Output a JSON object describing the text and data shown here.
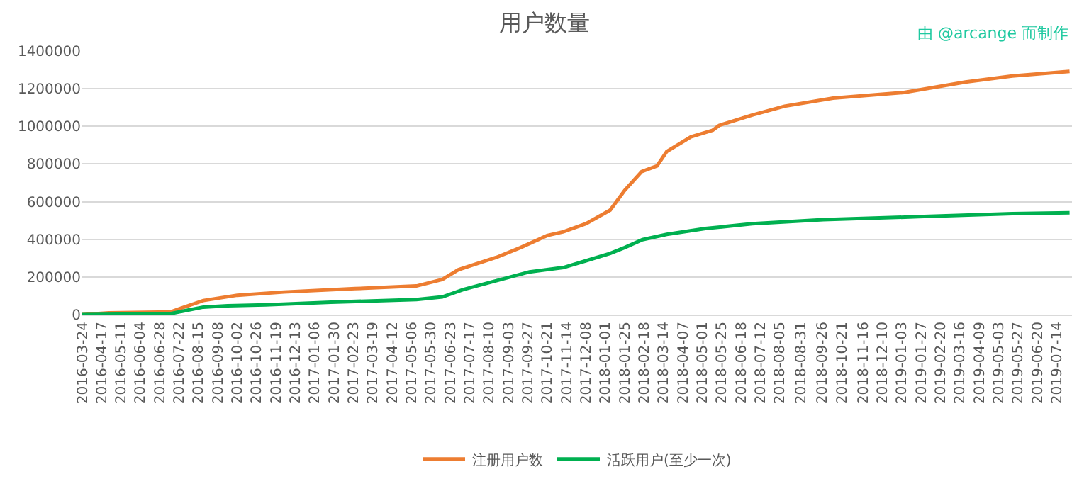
{
  "chart_data": {
    "type": "line",
    "title": "用户数量",
    "annotations": [
      "由 @arcange 而制作"
    ],
    "xlim": [
      "2016-03-24",
      "2019-08-02"
    ],
    "xticks": [
      "2016-03-24",
      "2016-04-17",
      "2016-05-11",
      "2016-06-04",
      "2016-06-28",
      "2016-07-22",
      "2016-08-15",
      "2016-09-08",
      "2016-10-02",
      "2016-10-26",
      "2016-11-19",
      "2016-12-13",
      "2017-01-06",
      "2017-01-30",
      "2017-02-23",
      "2017-03-19",
      "2017-04-12",
      "2017-05-06",
      "2017-05-30",
      "2017-06-23",
      "2017-07-17",
      "2017-08-10",
      "2017-09-03",
      "2017-09-27",
      "2017-10-21",
      "2017-11-14",
      "2017-12-08",
      "2018-01-01",
      "2018-01-25",
      "2018-02-18",
      "2018-03-14",
      "2018-04-07",
      "2018-05-01",
      "2018-05-25",
      "2018-06-18",
      "2018-07-12",
      "2018-08-05",
      "2018-08-31",
      "2018-09-26",
      "2018-10-21",
      "2018-11-16",
      "2018-12-10",
      "2019-01-03",
      "2019-01-27",
      "2019-02-20",
      "2019-03-16",
      "2019-04-09",
      "2019-05-03",
      "2019-05-27",
      "2019-06-20",
      "2019-07-14"
    ],
    "ylim": [
      0,
      1400000
    ],
    "yticks": [
      0,
      200000,
      400000,
      600000,
      800000,
      1000000,
      1200000,
      1400000
    ],
    "grid": "y",
    "legend": "bottom",
    "marker": "none",
    "line_style": "solid",
    "series": [
      {
        "name": "注册用户数",
        "color": "#ed7d31",
        "x": [
          "2016-03-24",
          "2016-04-26",
          "2016-07-11",
          "2016-08-21",
          "2016-10-02",
          "2016-11-29",
          "2017-02-25",
          "2017-05-12",
          "2017-06-13",
          "2017-07-03",
          "2017-08-19",
          "2017-09-18",
          "2017-10-21",
          "2017-11-10",
          "2017-12-08",
          "2018-01-07",
          "2018-01-25",
          "2018-02-15",
          "2018-03-06",
          "2018-03-18",
          "2018-04-17",
          "2018-05-14",
          "2018-05-22",
          "2018-07-02",
          "2018-08-11",
          "2018-10-10",
          "2019-01-06",
          "2019-03-23",
          "2019-05-20",
          "2019-07-30"
        ],
        "values": [
          0,
          9000,
          14000,
          75000,
          103000,
          120000,
          138000,
          152000,
          187000,
          239000,
          304000,
          356000,
          420000,
          440000,
          483000,
          555000,
          660000,
          760000,
          790000,
          866000,
          944000,
          979000,
          1005000,
          1060000,
          1107000,
          1150000,
          1180000,
          1235000,
          1267000,
          1292000
        ]
      },
      {
        "name": "活跃用户(至少一次)",
        "color": "#00b050",
        "x": [
          "2016-03-24",
          "2016-07-11",
          "2016-08-21",
          "2016-09-20",
          "2016-11-06",
          "2017-01-26",
          "2017-05-12",
          "2017-06-13",
          "2017-07-09",
          "2017-08-19",
          "2017-09-29",
          "2017-11-10",
          "2017-12-08",
          "2018-01-07",
          "2018-01-25",
          "2018-02-16",
          "2018-03-18",
          "2018-05-05",
          "2018-07-02",
          "2018-09-28",
          "2019-01-24",
          "2019-05-20",
          "2019-07-30"
        ],
        "values": [
          0,
          5000,
          40000,
          47000,
          52000,
          66000,
          80000,
          94000,
          133000,
          180000,
          227000,
          250000,
          286000,
          325000,
          356000,
          398000,
          426000,
          457000,
          483000,
          504000,
          520000,
          536000,
          541000
        ]
      }
    ]
  }
}
